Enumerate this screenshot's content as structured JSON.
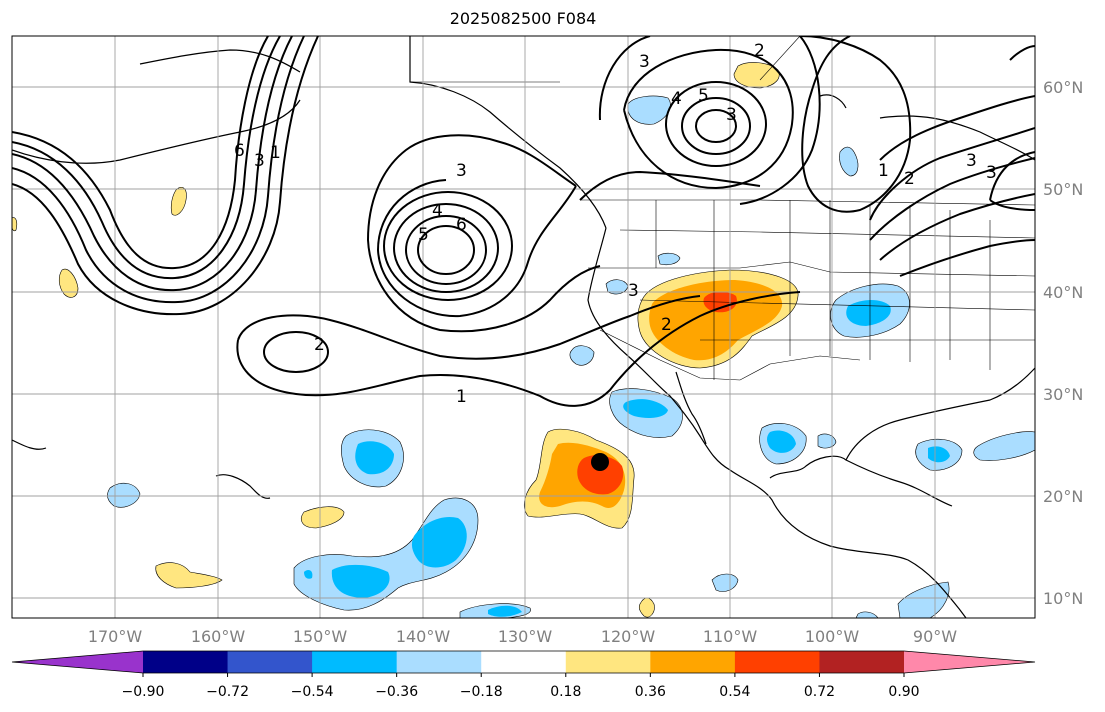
{
  "title": "2025082500 F084",
  "lon_labels": [
    "170°W",
    "160°W",
    "150°W",
    "140°W",
    "130°W",
    "120°W",
    "110°W",
    "100°W",
    "90°W"
  ],
  "lat_labels": [
    "60°N",
    "50°N",
    "40°N",
    "30°N",
    "20°N",
    "10°N"
  ],
  "colorbar": {
    "colors": [
      "#9933cc",
      "#000088",
      "#3355cc",
      "#00bbff",
      "#aaddff",
      "#ffffff",
      "#ffe680",
      "#ffa500",
      "#ff4000",
      "#b22222",
      "#ff88aa"
    ],
    "ticks": [
      "−0.90",
      "−0.72",
      "−0.54",
      "−0.36",
      "−0.18",
      "0.18",
      "0.36",
      "0.54",
      "0.72",
      "0.90"
    ]
  },
  "contour_labels": [
    "3",
    "4",
    "5",
    "3",
    "2",
    "3",
    "1",
    "2",
    "3",
    "4",
    "6",
    "5",
    "3",
    "2",
    "1",
    "2",
    "3",
    "6",
    "3",
    "1"
  ],
  "marker": "storm-center-dot"
}
